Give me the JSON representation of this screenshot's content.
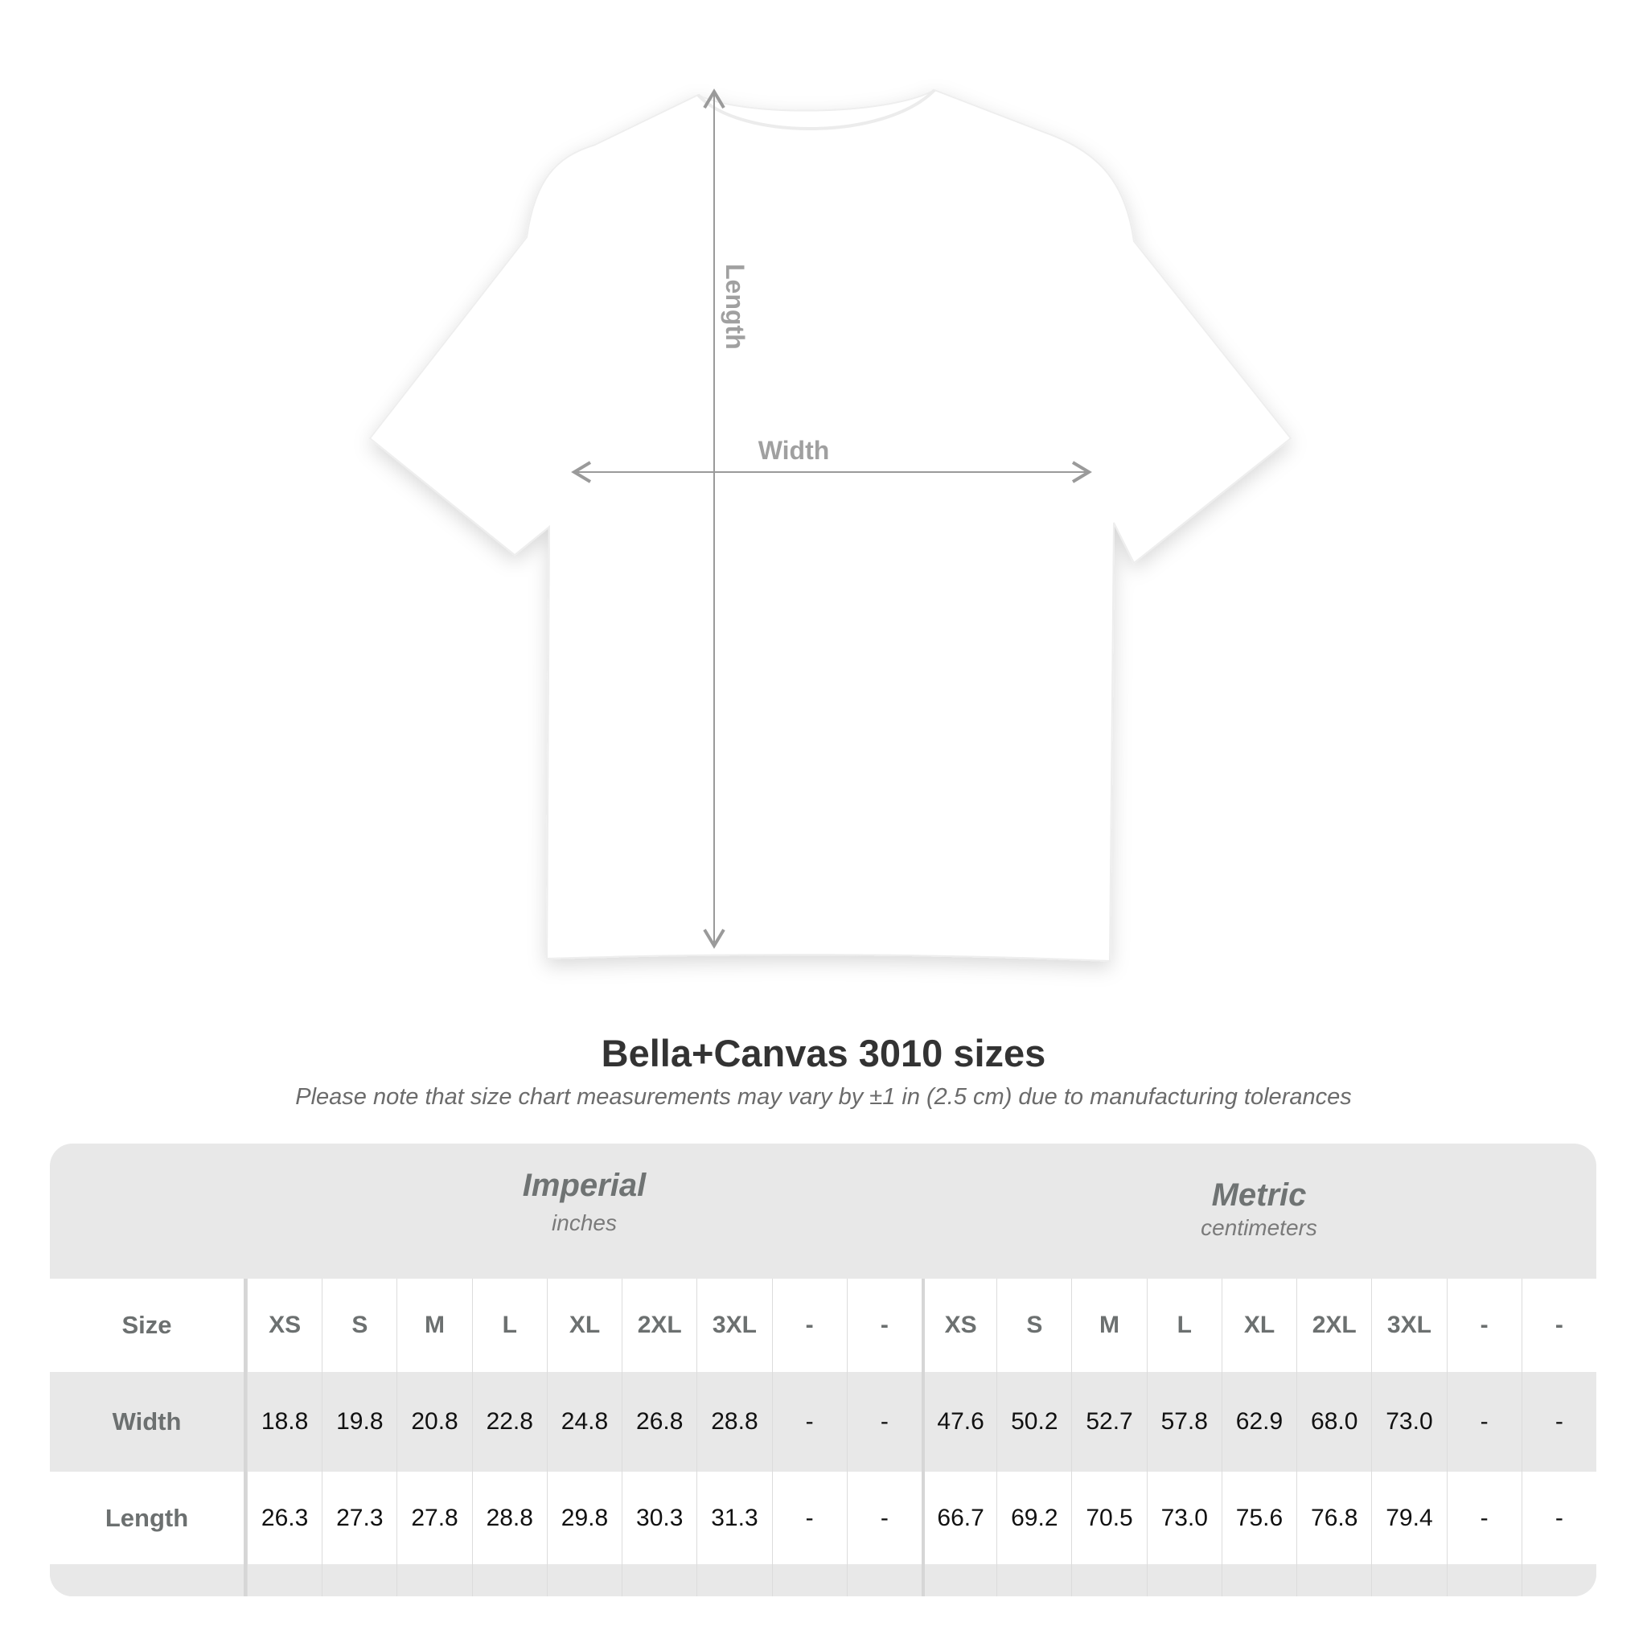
{
  "diagram": {
    "length_label": "Length",
    "width_label": "Width"
  },
  "title": "Bella+Canvas 3010 sizes",
  "note": "Please note that size chart measurements may vary by ±1 in (2.5 cm) due to manufacturing tolerances",
  "table": {
    "imperial": {
      "title": "Imperial",
      "unit": "inches"
    },
    "metric": {
      "title": "Metric",
      "unit": "centimeters"
    },
    "rows": [
      {
        "label": "Size",
        "imperial": [
          "XS",
          "S",
          "M",
          "L",
          "XL",
          "2XL",
          "3XL",
          "-",
          "-"
        ],
        "metric": [
          "XS",
          "S",
          "M",
          "L",
          "XL",
          "2XL",
          "3XL",
          "-",
          "-"
        ]
      },
      {
        "label": "Width",
        "imperial": [
          "18.8",
          "19.8",
          "20.8",
          "22.8",
          "24.8",
          "26.8",
          "28.8",
          "-",
          "-"
        ],
        "metric": [
          "47.6",
          "50.2",
          "52.7",
          "57.8",
          "62.9",
          "68.0",
          "73.0",
          "-",
          "-"
        ]
      },
      {
        "label": "Length",
        "imperial": [
          "26.3",
          "27.3",
          "27.8",
          "28.8",
          "29.8",
          "30.3",
          "31.3",
          "-",
          "-"
        ],
        "metric": [
          "66.7",
          "69.2",
          "70.5",
          "73.0",
          "75.6",
          "76.8",
          "79.4",
          "-",
          "-"
        ]
      }
    ]
  }
}
